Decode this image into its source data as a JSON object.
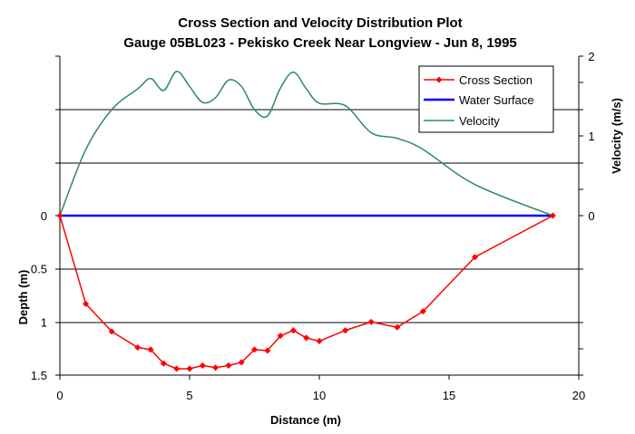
{
  "chart_data": {
    "type": "line",
    "title": "Cross Section and Velocity Distribution Plot",
    "subtitle": "Gauge 05BL023 - Pekisko Creek Near Longview - Jun 8, 1995",
    "xlabel": "Distance (m)",
    "ylabel_left": "Depth (m)",
    "ylabel_right": "Velocity (m/s)",
    "xlim": [
      0,
      20
    ],
    "xticks": [
      "0",
      "5",
      "10",
      "15",
      "20"
    ],
    "depth_ticks": [
      "0",
      "0.5",
      "1",
      "1.5"
    ],
    "velocity_ticks": [
      "0",
      "1",
      "2"
    ],
    "grid": "horizontal",
    "legend_position": "top-right",
    "colors": {
      "cross_section": "#ff0000",
      "water_surface": "#0000ff",
      "velocity": "#2e8b57",
      "grid": "#000000"
    },
    "series": [
      {
        "name": "Cross Section",
        "axis": "depth",
        "x": [
          0,
          1,
          2,
          3,
          3.5,
          4,
          4.5,
          5,
          5.5,
          6,
          6.5,
          7,
          7.5,
          8,
          8.5,
          9,
          9.5,
          10,
          11,
          12,
          13,
          14,
          16,
          19
        ],
        "y": [
          0,
          0.83,
          1.09,
          1.24,
          1.26,
          1.39,
          1.44,
          1.44,
          1.41,
          1.43,
          1.41,
          1.38,
          1.26,
          1.27,
          1.13,
          1.08,
          1.15,
          1.18,
          1.08,
          1.0,
          1.05,
          0.9,
          0.39,
          0
        ]
      },
      {
        "name": "Water Surface",
        "axis": "depth",
        "x": [
          0,
          19
        ],
        "y": [
          0,
          0
        ]
      },
      {
        "name": "Velocity",
        "axis": "velocity",
        "x": [
          0,
          1,
          2,
          3,
          3.5,
          4,
          4.5,
          5,
          5.5,
          6,
          6.5,
          7,
          7.5,
          8,
          8.5,
          9,
          9.5,
          10,
          11,
          12,
          13,
          14,
          16,
          19
        ],
        "y": [
          0,
          0.83,
          1.33,
          1.59,
          1.72,
          1.57,
          1.81,
          1.62,
          1.42,
          1.48,
          1.7,
          1.62,
          1.33,
          1.25,
          1.6,
          1.8,
          1.59,
          1.41,
          1.38,
          1.04,
          0.97,
          0.83,
          0.39,
          0
        ]
      }
    ]
  }
}
